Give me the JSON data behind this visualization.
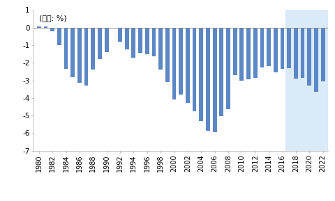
{
  "years": [
    1980,
    1981,
    1982,
    1983,
    1984,
    1985,
    1986,
    1987,
    1988,
    1989,
    1990,
    1991,
    1992,
    1993,
    1994,
    1995,
    1996,
    1997,
    1998,
    1999,
    2000,
    2001,
    2002,
    2003,
    2004,
    2005,
    2006,
    2007,
    2008,
    2009,
    2010,
    2011,
    2012,
    2013,
    2014,
    2015,
    2016,
    2017,
    2018,
    2019,
    2020,
    2021,
    2022
  ],
  "values": [
    0.08,
    0.05,
    -0.2,
    -1.0,
    -2.35,
    -2.8,
    -3.15,
    -3.3,
    -2.4,
    -1.8,
    -1.4,
    0.0,
    -0.8,
    -1.25,
    -1.7,
    -1.45,
    -1.5,
    -1.65,
    -2.4,
    -3.1,
    -4.1,
    -3.8,
    -4.3,
    -4.75,
    -5.3,
    -5.85,
    -5.95,
    -5.05,
    -4.65,
    -2.7,
    -3.0,
    -2.95,
    -2.85,
    -2.25,
    -2.2,
    -2.55,
    -2.35,
    -2.3,
    -2.9,
    -2.85,
    -3.3,
    -3.65,
    -3.05
  ],
  "forecast_start_year": 2017,
  "bar_color": "#5b87c5",
  "forecast_bg_color": "#daeaf8",
  "ylabel_text": "(단위: %)",
  "ylim": [
    -7,
    1
  ],
  "yticks": [
    1,
    0,
    -1,
    -2,
    -3,
    -4,
    -5,
    -6,
    -7
  ],
  "xtick_years": [
    1980,
    1982,
    1984,
    1986,
    1988,
    1990,
    1992,
    1994,
    1996,
    1998,
    2000,
    2002,
    2004,
    2006,
    2008,
    2010,
    2012,
    2014,
    2016,
    2018,
    2020,
    2022
  ],
  "bg_color": "#ffffff",
  "bar_width": 0.6
}
